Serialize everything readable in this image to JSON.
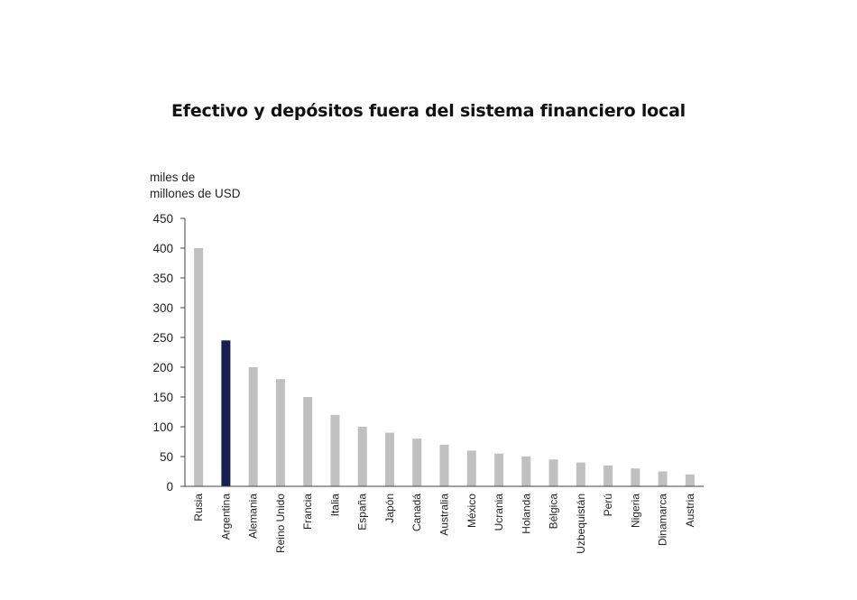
{
  "chart_data": {
    "type": "bar",
    "title": "Efectivo y depósitos fuera del sistema financiero local",
    "ylabel_lines": [
      "miles de",
      "millones de USD"
    ],
    "xlabel": "",
    "ylim": [
      0,
      450
    ],
    "yticks": [
      0,
      50,
      100,
      150,
      200,
      250,
      300,
      350,
      400,
      450
    ],
    "grid": false,
    "categories": [
      "Rusia",
      "Argentina",
      "Alemania",
      "Reino Unido",
      "Francia",
      "Italia",
      "España",
      "Japón",
      "Canadá",
      "Australia",
      "México",
      "Ucrania",
      "Holanda",
      "Bélgica",
      "Uzbequistán",
      "Perú",
      "Nigeria",
      "Dinamarca",
      "Austria"
    ],
    "values": [
      400,
      245,
      200,
      180,
      150,
      120,
      100,
      90,
      80,
      70,
      60,
      55,
      50,
      45,
      40,
      35,
      30,
      25,
      20
    ],
    "highlight": "Argentina",
    "colors": {
      "bar": "#c0c0c0",
      "highlight": "#15204f",
      "axis": "#444444"
    }
  }
}
